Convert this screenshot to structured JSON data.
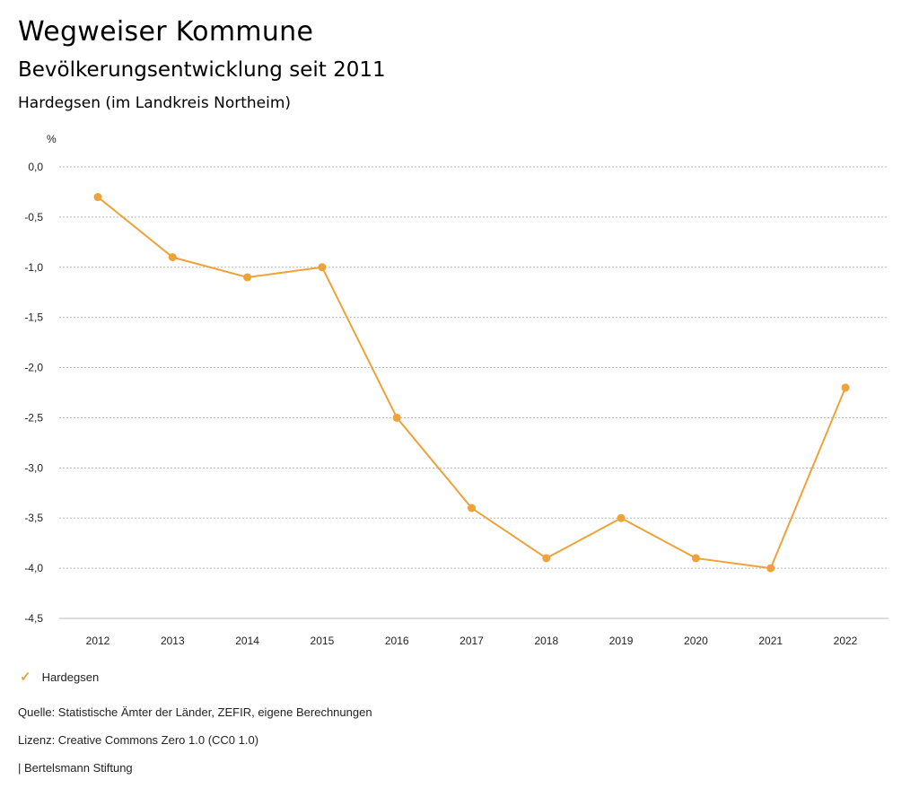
{
  "header": {
    "title": "Wegweiser Kommune",
    "subtitle": "Bevölkerungsentwicklung seit 2011",
    "region": "Hardegsen (im Landkreis Northeim)"
  },
  "chart_data": {
    "type": "line",
    "unit_label": "%",
    "x": [
      "2012",
      "2013",
      "2014",
      "2015",
      "2016",
      "2017",
      "2018",
      "2019",
      "2020",
      "2021",
      "2022"
    ],
    "series": [
      {
        "name": "Hardegsen",
        "color": "#f0a23a",
        "values": [
          -0.3,
          -0.9,
          -1.1,
          -1.0,
          -2.5,
          -3.4,
          -3.9,
          -3.5,
          -3.9,
          -4.0,
          -2.2
        ]
      }
    ],
    "y_ticks": [
      "0,0",
      "-0,5",
      "-1,0",
      "-1,5",
      "-2,0",
      "-2,5",
      "-3,0",
      "-3,5",
      "-4,0",
      "-4,5"
    ],
    "y_tick_values": [
      0.0,
      -0.5,
      -1.0,
      -1.5,
      -2.0,
      -2.5,
      -3.0,
      -3.5,
      -4.0,
      -4.5
    ],
    "ylim": [
      -4.5,
      0.0
    ],
    "grid": true,
    "legend_position": "bottom-left"
  },
  "legend": {
    "label": "Hardegsen"
  },
  "footer": {
    "source": "Quelle: Statistische Ämter der Länder, ZEFIR, eigene Berechnungen",
    "license": "Lizenz: Creative Commons Zero 1.0 (CC0 1.0)",
    "publisher": "| Bertelsmann Stiftung"
  }
}
